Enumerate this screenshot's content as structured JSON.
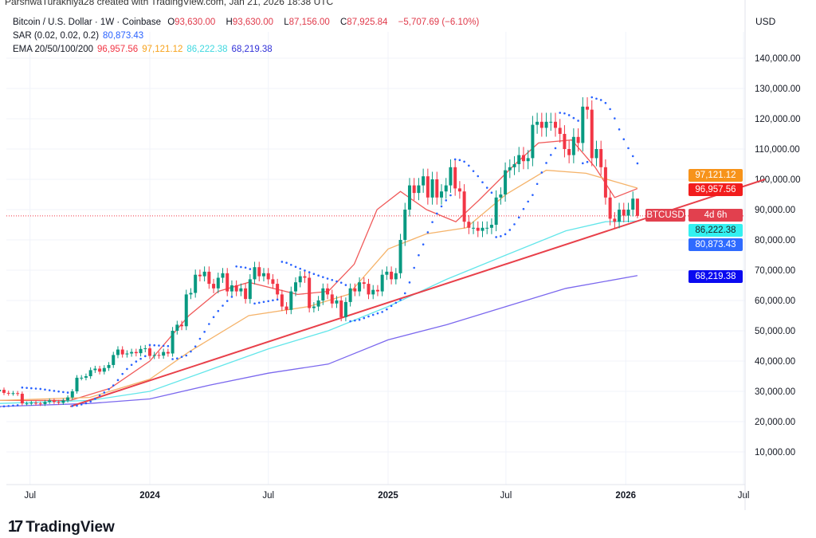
{
  "credit": "ParshwaTurakhiya28 created with TradingView.com, Jan 21, 2026 18:38 UTC",
  "legend": {
    "symbol": "Bitcoin / U.S. Dollar · 1W · Coinbase",
    "o_label": "O",
    "o": "93,630.00",
    "h_label": "H",
    "h": "93,630.00",
    "l_label": "L",
    "l": "87,156.00",
    "c_label": "C",
    "c": "87,925.84",
    "change": "−5,707.69 (−6.10%)",
    "sar_label": "SAR (0.02, 0.02, 0.2)",
    "sar": "80,873.43",
    "ema_label": "EMA 20/50/100/200",
    "ema20": "96,957.56",
    "ema50": "97,121.12",
    "ema100": "86,222.38",
    "ema200": "68,219.38"
  },
  "currency": "USD",
  "price_tag": {
    "symbol": "BTCUSD",
    "countdown": "4d 6h"
  },
  "colors": {
    "up": "#089981",
    "down": "#f23645",
    "ema20": "#f05a5a",
    "ema50": "#f5b36a",
    "ema100": "#63e6ea",
    "ema200": "#7b68ee",
    "sar": "#2962ff",
    "trendline": "#e8404a"
  },
  "logo": "TradingView",
  "chart_data": {
    "type": "candlestick",
    "interval": "1W",
    "y_ticks": [
      10000,
      20000,
      30000,
      40000,
      50000,
      60000,
      70000,
      80000,
      90000,
      100000,
      110000,
      120000,
      130000,
      140000
    ],
    "y_tick_labels": [
      "10,000.00",
      "20,000.00",
      "30,000.00",
      "40,000.00",
      "50,000.00",
      "60,000.00",
      "70,000.00",
      "80,000.00",
      "90,000.00",
      "100,000.00",
      "110,000.00",
      "120,000.00",
      "130,000.00",
      "140,000.00"
    ],
    "x_ticks": [
      {
        "date": "2023-07-01",
        "label": "Jul"
      },
      {
        "date": "2024-01-01",
        "label": "2024"
      },
      {
        "date": "2024-07-01",
        "label": "Jul"
      },
      {
        "date": "2025-01-01",
        "label": "2025"
      },
      {
        "date": "2025-07-01",
        "label": "Jul"
      },
      {
        "date": "2026-01-01",
        "label": "2026"
      },
      {
        "date": "2026-07-01",
        "label": "Jul"
      }
    ],
    "last_close": 87925.84,
    "weekly_closes": [
      27,
      26.5,
      27,
      26,
      25,
      26.5,
      30.5,
      30.5,
      30.3,
      30,
      30.5,
      29.5,
      29.3,
      29.4,
      29.2,
      26,
      26,
      26.2,
      26,
      25.8,
      26.5,
      27,
      26.5,
      26.2,
      27,
      28,
      30,
      34.5,
      34.5,
      35,
      37,
      37.5,
      36.5,
      37.7,
      38.7,
      42,
      43.8,
      42.2,
      42.5,
      43,
      42.6,
      44,
      44.2,
      41.7,
      42,
      41.8,
      43,
      42.5,
      50,
      52,
      51.5,
      62,
      62.5,
      68.5,
      68,
      69.5,
      65.5,
      64,
      67.5,
      69,
      63,
      65,
      63,
      64,
      60.5,
      67,
      71,
      68,
      69,
      67,
      65.5,
      62,
      58,
      56.9,
      63,
      66,
      68,
      67.5,
      57.5,
      58,
      60,
      64,
      62,
      59,
      60,
      54.5,
      59.5,
      64,
      63,
      66,
      65.5,
      62,
      63.5,
      63,
      68.5,
      69.5,
      67,
      69,
      80,
      90,
      98,
      95.5,
      98,
      101,
      94,
      100,
      94,
      96,
      98,
      104,
      97,
      96,
      86,
      84,
      84,
      83,
      84,
      84,
      85,
      94,
      95,
      103,
      104,
      105,
      108,
      106,
      107,
      118,
      119,
      117,
      119,
      119,
      117,
      115,
      110,
      108,
      114,
      112,
      124,
      123,
      107,
      110,
      104,
      94,
      87,
      86,
      90,
      88,
      90,
      93.63,
      87.93
    ],
    "weekly_closes_unit": "thousand USD",
    "ema": [
      {
        "name": "EMA 20",
        "value": 96957.56,
        "points": [
          [
            "2023-05-15",
            27
          ],
          [
            "2023-09-01",
            27
          ],
          [
            "2023-11-01",
            31
          ],
          [
            "2024-01-01",
            40
          ],
          [
            "2024-03-01",
            55
          ],
          [
            "2024-04-15",
            63
          ],
          [
            "2024-06-01",
            66
          ],
          [
            "2024-08-15",
            62
          ],
          [
            "2024-10-01",
            63
          ],
          [
            "2024-11-10",
            72
          ],
          [
            "2024-12-15",
            90
          ],
          [
            "2025-01-20",
            96
          ],
          [
            "2025-03-01",
            90
          ],
          [
            "2025-04-15",
            86
          ],
          [
            "2025-05-20",
            93
          ],
          [
            "2025-07-15",
            105
          ],
          [
            "2025-08-20",
            112
          ],
          [
            "2025-10-10",
            113
          ],
          [
            "2025-11-15",
            104
          ],
          [
            "2025-12-15",
            94
          ],
          [
            "2026-01-19",
            96.96
          ]
        ]
      },
      {
        "name": "EMA 50",
        "value": 97121.12,
        "points": [
          [
            "2023-05-15",
            27
          ],
          [
            "2023-10-01",
            28
          ],
          [
            "2024-01-01",
            34
          ],
          [
            "2024-03-01",
            43
          ],
          [
            "2024-06-01",
            55
          ],
          [
            "2024-09-01",
            58
          ],
          [
            "2024-11-01",
            62
          ],
          [
            "2025-01-01",
            77
          ],
          [
            "2025-03-01",
            82
          ],
          [
            "2025-05-01",
            84
          ],
          [
            "2025-07-01",
            95
          ],
          [
            "2025-09-01",
            103
          ],
          [
            "2025-11-01",
            102
          ],
          [
            "2026-01-19",
            97.12
          ]
        ]
      },
      {
        "name": "EMA 100",
        "value": 86222.38,
        "points": [
          [
            "2023-05-15",
            26
          ],
          [
            "2023-10-01",
            27
          ],
          [
            "2024-01-01",
            30
          ],
          [
            "2024-04-01",
            37
          ],
          [
            "2024-07-01",
            44
          ],
          [
            "2024-10-01",
            50
          ],
          [
            "2025-01-01",
            58
          ],
          [
            "2025-04-01",
            67
          ],
          [
            "2025-07-01",
            75
          ],
          [
            "2025-10-01",
            83
          ],
          [
            "2025-12-01",
            86
          ],
          [
            "2026-01-19",
            86.22
          ]
        ]
      },
      {
        "name": "EMA 200",
        "value": 68219.38,
        "points": [
          [
            "2023-05-15",
            25
          ],
          [
            "2023-10-01",
            26
          ],
          [
            "2024-01-01",
            27.5
          ],
          [
            "2024-04-01",
            32
          ],
          [
            "2024-07-01",
            36
          ],
          [
            "2024-10-01",
            39
          ],
          [
            "2025-01-01",
            47
          ],
          [
            "2025-04-01",
            52
          ],
          [
            "2025-07-01",
            58
          ],
          [
            "2025-10-01",
            64
          ],
          [
            "2026-01-19",
            68.22
          ]
        ]
      }
    ],
    "sar_params": [
      0.02,
      0.02,
      0.2
    ],
    "trendline": [
      [
        "2023-09-01",
        25000
      ],
      [
        "2026-08-03",
        100000
      ]
    ]
  }
}
